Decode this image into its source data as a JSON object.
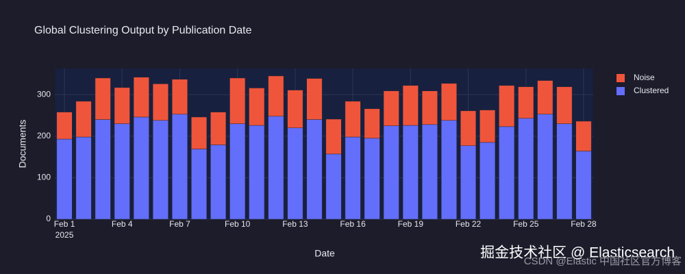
{
  "chart_data": {
    "type": "stacked_bar",
    "title": "Global Clustering Output by Publication Date",
    "xlabel": "Date",
    "ylabel": "Documents",
    "x": [
      "2025-02-01",
      "2025-02-02",
      "2025-02-03",
      "2025-02-04",
      "2025-02-05",
      "2025-02-06",
      "2025-02-07",
      "2025-02-08",
      "2025-02-09",
      "2025-02-10",
      "2025-02-11",
      "2025-02-12",
      "2025-02-13",
      "2025-02-14",
      "2025-02-15",
      "2025-02-16",
      "2025-02-17",
      "2025-02-18",
      "2025-02-19",
      "2025-02-20",
      "2025-02-21",
      "2025-02-22",
      "2025-02-23",
      "2025-02-24",
      "2025-02-25",
      "2025-02-26",
      "2025-02-27",
      "2025-02-28"
    ],
    "series": [
      {
        "name": "Clustered",
        "color": "#636efa",
        "values": [
          193,
          198,
          240,
          230,
          246,
          238,
          253,
          169,
          179,
          230,
          226,
          248,
          220,
          240,
          157,
          198,
          195,
          225,
          226,
          228,
          238,
          177,
          185,
          223,
          243,
          253,
          230,
          164
        ]
      },
      {
        "name": "Noise",
        "color": "#ef553b",
        "values": [
          65,
          86,
          100,
          87,
          96,
          88,
          84,
          77,
          79,
          110,
          90,
          97,
          91,
          99,
          84,
          86,
          71,
          84,
          96,
          81,
          89,
          84,
          78,
          99,
          76,
          81,
          89,
          72
        ]
      }
    ],
    "xlim": [
      "2025-01-31T12:00:00Z",
      "2025-02-28T12:00:00Z"
    ],
    "xticks": [
      {
        "value": "2025-02-01",
        "label": "Feb 1"
      },
      {
        "value": "2025-02-04",
        "label": "Feb 4"
      },
      {
        "value": "2025-02-07",
        "label": "Feb 7"
      },
      {
        "value": "2025-02-10",
        "label": "Feb 10"
      },
      {
        "value": "2025-02-13",
        "label": "Feb 13"
      },
      {
        "value": "2025-02-16",
        "label": "Feb 16"
      },
      {
        "value": "2025-02-19",
        "label": "Feb 19"
      },
      {
        "value": "2025-02-22",
        "label": "Feb 22"
      },
      {
        "value": "2025-02-25",
        "label": "Feb 25"
      },
      {
        "value": "2025-02-28",
        "label": "Feb 28"
      }
    ],
    "x_year_label": "2025",
    "ylim": [
      0,
      363
    ],
    "yticks": [
      0,
      100,
      200,
      300
    ],
    "grid": true,
    "legend": "top-right-outside",
    "watermark": [
      "掘金技术社区 @ Elasticsearch",
      "CSDN @Elastic 中国社区官方博客"
    ]
  }
}
